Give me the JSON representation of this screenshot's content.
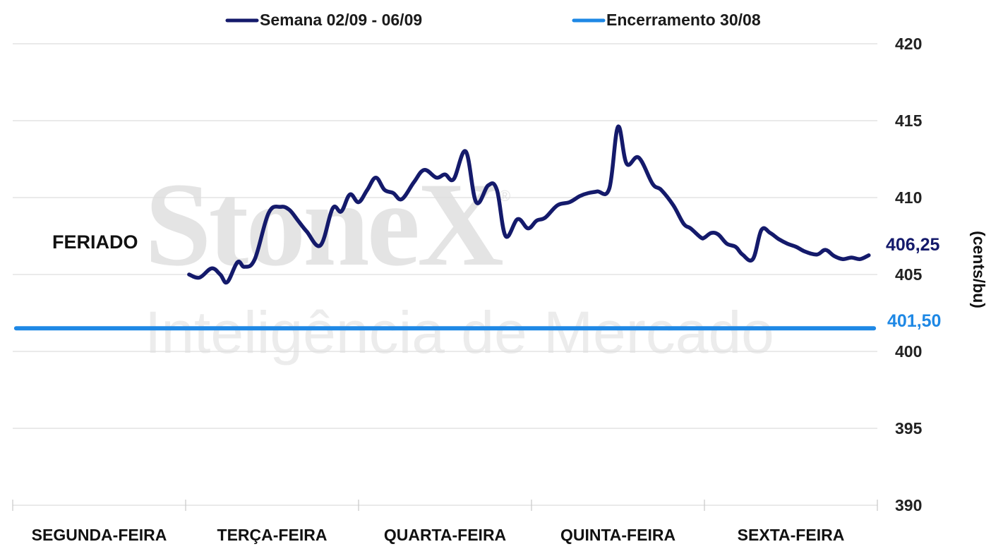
{
  "watermark": {
    "brand": "StoneX",
    "registered": "®",
    "tagline": "Inteligência de Mercado"
  },
  "colors": {
    "series_week": "#141a6b",
    "series_close": "#1e88e5",
    "grid": "#dddddd"
  },
  "chart_data": {
    "type": "line",
    "ylabel": "(cents/bu)",
    "ylim": [
      390,
      420
    ],
    "yticks": [
      390,
      395,
      400,
      405,
      410,
      415,
      420
    ],
    "y_axis_position": "right",
    "grid": true,
    "legend": "top",
    "categories": [
      "SEGUNDA-FEIRA",
      "TERÇA-FEIRA",
      "QUARTA-FEIRA",
      "QUINTA-FEIRA",
      "SEXTA-FEIRA"
    ],
    "annotations": [
      {
        "text": "FERIADO",
        "category": "SEGUNDA-FEIRA"
      }
    ],
    "series": [
      {
        "name": "Semana 02/09 - 06/09",
        "end_label": "406,25",
        "x": [
          1.02,
          1.08,
          1.15,
          1.2,
          1.24,
          1.3,
          1.34,
          1.4,
          1.48,
          1.55,
          1.6,
          1.65,
          1.7,
          1.78,
          1.85,
          1.9,
          1.95,
          2.0,
          2.05,
          2.1,
          2.15,
          2.2,
          2.25,
          2.32,
          2.38,
          2.45,
          2.5,
          2.55,
          2.62,
          2.68,
          2.75,
          2.8,
          2.85,
          2.92,
          2.98,
          3.03,
          3.08,
          3.15,
          3.22,
          3.28,
          3.33,
          3.38,
          3.45,
          3.5,
          3.55,
          3.62,
          3.7,
          3.75,
          3.82,
          3.88,
          3.92,
          3.98,
          4.0,
          4.04,
          4.08,
          4.13,
          4.18,
          4.22,
          4.28,
          4.33,
          4.38,
          4.43,
          4.48,
          4.53,
          4.58,
          4.65,
          4.7,
          4.75,
          4.8,
          4.85,
          4.9,
          4.95
        ],
        "values": [
          405.0,
          404.8,
          405.4,
          405.0,
          404.5,
          405.8,
          405.5,
          406.0,
          409.0,
          409.4,
          409.2,
          408.5,
          407.8,
          406.9,
          409.3,
          409.1,
          410.2,
          409.7,
          410.5,
          411.3,
          410.5,
          410.3,
          409.9,
          411.0,
          411.8,
          411.3,
          411.5,
          411.2,
          413.0,
          409.7,
          410.8,
          410.5,
          407.5,
          408.6,
          408.0,
          408.5,
          408.7,
          409.5,
          409.7,
          410.1,
          410.3,
          410.4,
          410.6,
          414.6,
          412.2,
          412.6,
          410.9,
          410.5,
          409.5,
          408.3,
          408.0,
          407.4,
          407.4,
          407.7,
          407.6,
          407.0,
          406.8,
          406.3,
          406.0,
          407.9,
          407.7,
          407.3,
          407.0,
          406.8,
          406.5,
          406.3,
          406.6,
          406.2,
          406.0,
          406.1,
          406.0,
          406.25
        ]
      },
      {
        "name": "Encerramento 30/08",
        "end_label": "401,50",
        "x": [
          0.02,
          4.98
        ],
        "values": [
          401.5,
          401.5
        ]
      }
    ]
  }
}
